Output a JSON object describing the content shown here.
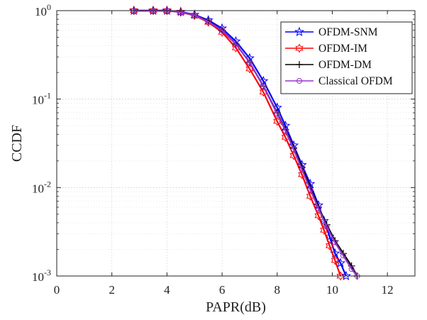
{
  "chart_data": {
    "type": "line",
    "title": "",
    "xlabel": "PAPR(dB)",
    "ylabel": "CCDF",
    "xlim": [
      0,
      13
    ],
    "ylim": [
      0.001,
      1
    ],
    "yscale": "log",
    "grid": true,
    "minor_grid": true,
    "legend_position": "top-right",
    "x_ticks": [
      0,
      2,
      4,
      6,
      8,
      10,
      12
    ],
    "x_tick_labels": [
      "0",
      "2",
      "4",
      "6",
      "8",
      "10",
      "12"
    ],
    "y_ticks": [
      0.001,
      0.01,
      0.1,
      1
    ],
    "y_tick_labels": [
      {
        "base": "10",
        "exp": "-3"
      },
      {
        "base": "10",
        "exp": "-2"
      },
      {
        "base": "10",
        "exp": "-1"
      },
      {
        "base": "10",
        "exp": "0"
      }
    ],
    "series": [
      {
        "name": "OFDM-SNM",
        "color": "#0000ff",
        "marker": "star",
        "x": [
          2.8,
          3.5,
          4.0,
          4.5,
          5.0,
          5.5,
          6.0,
          6.5,
          7.0,
          7.5,
          8.0,
          8.3,
          8.6,
          8.9,
          9.2,
          9.5,
          9.7,
          9.9,
          10.1,
          10.3,
          10.5
        ],
        "y": [
          1.0,
          1.0,
          1.0,
          0.97,
          0.9,
          0.78,
          0.63,
          0.45,
          0.29,
          0.16,
          0.08,
          0.05,
          0.03,
          0.018,
          0.011,
          0.0063,
          0.0042,
          0.0028,
          0.0018,
          0.0014,
          0.001
        ]
      },
      {
        "name": "OFDM-IM",
        "color": "#ff0000",
        "marker": "hexagram",
        "x": [
          2.8,
          3.5,
          4.0,
          4.5,
          5.0,
          5.5,
          6.0,
          6.5,
          7.0,
          7.5,
          8.0,
          8.3,
          8.6,
          8.9,
          9.2,
          9.5,
          9.7,
          9.9,
          10.1,
          10.3
        ],
        "y": [
          1.0,
          1.0,
          1.0,
          0.96,
          0.88,
          0.74,
          0.57,
          0.38,
          0.22,
          0.12,
          0.056,
          0.037,
          0.023,
          0.014,
          0.008,
          0.0048,
          0.0033,
          0.0022,
          0.0015,
          0.001
        ]
      },
      {
        "name": "OFDM-DM",
        "color": "#000000",
        "marker": "plus",
        "x": [
          2.8,
          3.5,
          4.0,
          4.5,
          5.0,
          5.5,
          6.0,
          6.5,
          7.0,
          7.5,
          8.0,
          8.3,
          8.6,
          8.9,
          9.2,
          9.5,
          9.8,
          10.1,
          10.4,
          10.7,
          10.9
        ],
        "y": [
          1.0,
          1.0,
          1.0,
          0.96,
          0.89,
          0.76,
          0.6,
          0.42,
          0.26,
          0.14,
          0.07,
          0.045,
          0.028,
          0.017,
          0.01,
          0.006,
          0.0038,
          0.0025,
          0.0018,
          0.0013,
          0.001
        ]
      },
      {
        "name": "Classical OFDM",
        "color": "#9933cc",
        "marker": "circle",
        "x": [
          2.8,
          3.5,
          4.0,
          4.5,
          5.0,
          5.5,
          6.0,
          6.5,
          7.0,
          7.5,
          8.0,
          8.3,
          8.6,
          8.9,
          9.2,
          9.5,
          9.8,
          10.1,
          10.4,
          10.7,
          10.9
        ],
        "y": [
          1.0,
          1.0,
          1.0,
          0.96,
          0.89,
          0.75,
          0.6,
          0.42,
          0.26,
          0.14,
          0.068,
          0.044,
          0.027,
          0.016,
          0.0095,
          0.0058,
          0.0036,
          0.0024,
          0.0017,
          0.0012,
          0.001
        ]
      }
    ]
  }
}
